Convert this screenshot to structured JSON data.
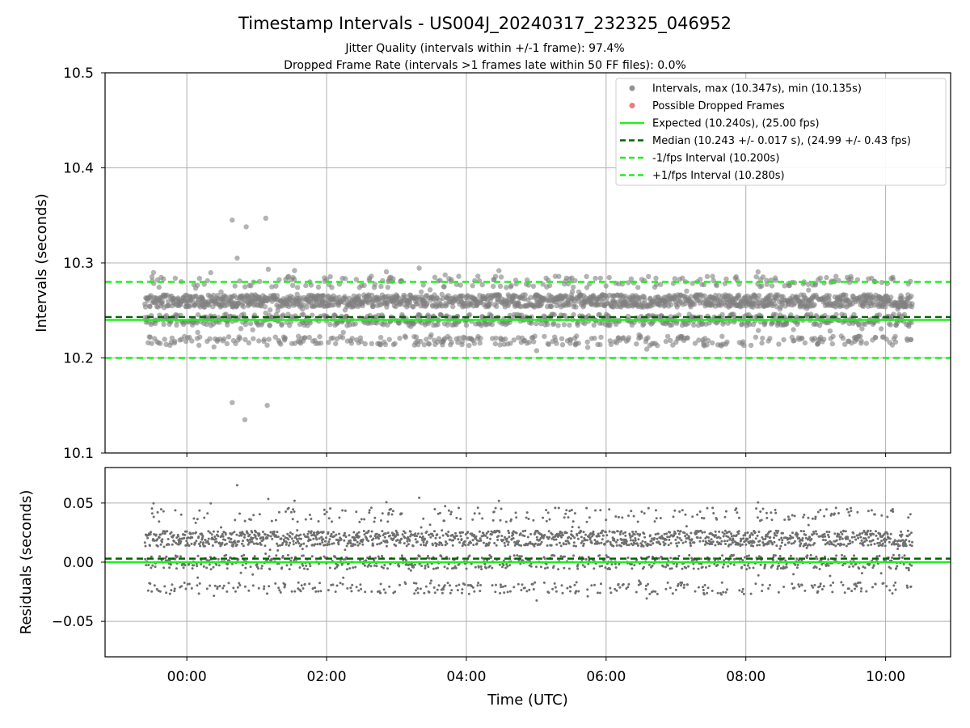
{
  "chart_data": [
    {
      "type": "scatter",
      "title": "Timestamp Intervals - US004J_20240317_232325_046952",
      "subtitle_lines": [
        "Jitter Quality (intervals within +/-1 frame): 97.4%",
        "Dropped Frame Rate (intervals >1 frames late within 50 FF files): 0.0%"
      ],
      "xlabel": "",
      "ylabel": "Intervals (seconds)",
      "ylim": [
        10.1,
        10.5
      ],
      "yticks": [
        10.1,
        10.2,
        10.3,
        10.4,
        10.5
      ],
      "yticklabels": [
        "10.1",
        "10.2",
        "10.3",
        "10.4",
        "10.5"
      ],
      "xlim_hours": [
        -1.17,
        10.93
      ],
      "xticks_hours": [
        0,
        2,
        4,
        6,
        8,
        10
      ],
      "xticklabels": [],
      "grid": true,
      "legend_position": "top-right",
      "time_range_hours": [
        -0.6,
        10.38
      ],
      "outliers": [
        [
          0.65,
          10.345
        ],
        [
          0.72,
          10.305
        ],
        [
          0.85,
          10.338
        ],
        [
          1.13,
          10.347
        ],
        [
          0.65,
          10.153
        ],
        [
          0.83,
          10.135
        ],
        [
          1.15,
          10.15
        ]
      ],
      "series": [
        {
          "name": "Intervals, max (10.347s), min (10.135s)",
          "kind": "scatter",
          "color": "#808080"
        },
        {
          "name": "Possible Dropped Frames",
          "kind": "scatter",
          "color": "#f06060"
        },
        {
          "name": "Expected (10.240s), (25.00 fps)",
          "kind": "hline",
          "value": 10.24,
          "color": "#22ee22",
          "style": "solid"
        },
        {
          "name": "Median (10.243 +/- 0.017 s), (24.99 +/- 0.43 fps)",
          "kind": "hline",
          "value": 10.243,
          "color": "#006400",
          "style": "dashed"
        },
        {
          "name": "-1/fps Interval (10.200s)",
          "kind": "hline",
          "value": 10.2,
          "color": "#22ee22",
          "style": "dashed"
        },
        {
          "name": "+1/fps Interval (10.280s)",
          "kind": "hline",
          "value": 10.28,
          "color": "#22ee22",
          "style": "dashed"
        }
      ]
    },
    {
      "type": "scatter",
      "xlabel": "Time (UTC)",
      "ylabel": "Residuals (seconds)",
      "ylim": [
        -0.08,
        0.08
      ],
      "yticks": [
        -0.05,
        0.0,
        0.05
      ],
      "yticklabels": [
        "−0.05",
        "0.00",
        "0.05"
      ],
      "xticks_hours": [
        0,
        2,
        4,
        6,
        8,
        10
      ],
      "xticklabels": [
        "00:00",
        "02:00",
        "04:00",
        "06:00",
        "08:00",
        "10:00"
      ],
      "grid": true,
      "zero_line": {
        "value": 0.0,
        "color": "#22ee22"
      },
      "median_line": {
        "value": 0.003,
        "color": "#006400"
      },
      "point_color": "#808080"
    }
  ]
}
